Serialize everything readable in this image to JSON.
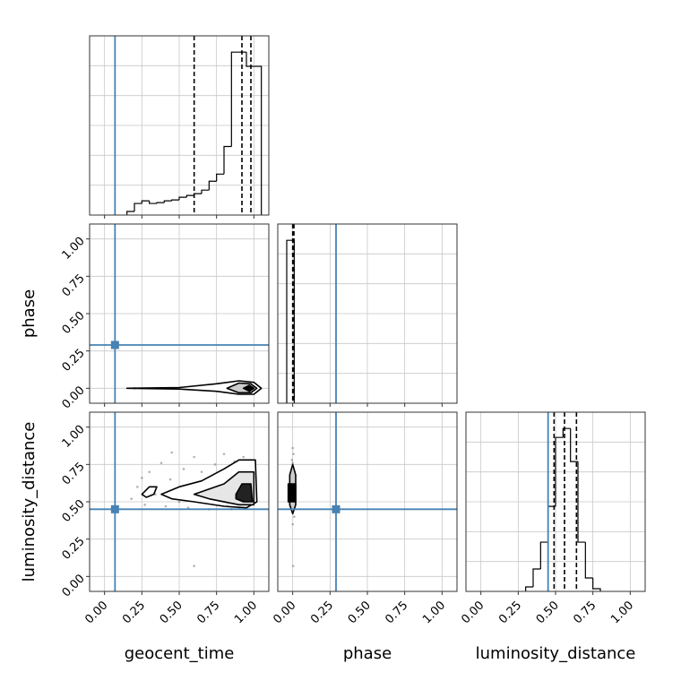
{
  "chart_data": {
    "type": "corner",
    "parameters": [
      "geocent_time",
      "phase",
      "luminosity_distance"
    ],
    "truths": [
      0.07,
      0.29,
      0.45
    ],
    "truth_color": "#4682b4",
    "line_color": "#000000",
    "point_color": "#808080",
    "grid": true,
    "xlim": [
      -0.1,
      1.1
    ],
    "ylim": [
      -0.1,
      1.1
    ],
    "xticks": [
      {
        "value": 0,
        "label": "0.00"
      },
      {
        "value": 0.25,
        "label": "0.25"
      },
      {
        "value": 0.5,
        "label": "0.50"
      },
      {
        "value": 0.75,
        "label": "0.75"
      },
      {
        "value": 1,
        "label": "1.00"
      }
    ],
    "yticks": [
      {
        "value": 0,
        "label": "0.00"
      },
      {
        "value": 0.25,
        "label": "0.25"
      },
      {
        "value": 0.5,
        "label": "0.50"
      },
      {
        "value": 0.75,
        "label": "0.75"
      },
      {
        "value": 1,
        "label": "1.00"
      }
    ],
    "histograms": [
      {
        "bins": [
          0.15,
          0.2,
          0.25,
          0.3,
          0.35,
          0.4,
          0.45,
          0.5,
          0.55,
          0.6,
          0.65,
          0.7,
          0.75,
          0.8,
          0.85,
          0.9,
          0.95,
          1.0,
          1.05
        ],
        "counts": [
          4,
          13,
          16,
          13,
          14,
          16,
          17,
          20,
          22,
          24,
          28,
          38,
          46,
          77,
          183,
          183,
          167,
          167
        ],
        "quantiles": [
          0.6,
          0.92,
          0.98
        ]
      },
      {
        "bins": [
          -0.04,
          0.0,
          0.01
        ],
        "counts": [
          1000,
          1000
        ],
        "quantiles": [
          0.0,
          0.003,
          0.008
        ]
      },
      {
        "bins": [
          0.3,
          0.35,
          0.4,
          0.45,
          0.5,
          0.55,
          0.6,
          0.65,
          0.7,
          0.75,
          0.8
        ],
        "counts": [
          5,
          25,
          55,
          95,
          172,
          182,
          145,
          55,
          15,
          3
        ],
        "quantiles": [
          0.49,
          0.56,
          0.64
        ]
      }
    ],
    "pairs": [
      {
        "points": {
          "x": [
            0.2,
            0.35,
            0.5,
            0.65,
            0.8,
            0.95
          ],
          "y": [
            0,
            0.002,
            -0.002,
            0.01,
            -0.01,
            0.02
          ]
        },
        "contours": [
          {
            "fill": "#ffffff",
            "x": [
              0.15,
              0.5,
              0.75,
              0.9,
              1.0,
              1.05,
              1.0,
              0.9,
              0.75,
              0.5
            ],
            "y": [
              0.0,
              0.005,
              0.03,
              0.05,
              0.04,
              0.0,
              -0.04,
              -0.04,
              -0.02,
              -0.005
            ]
          },
          {
            "fill": "#cccccc",
            "x": [
              0.82,
              0.9,
              0.98,
              1.02,
              0.98,
              0.9
            ],
            "y": [
              0.0,
              0.035,
              0.03,
              0.0,
              -0.03,
              -0.03
            ]
          },
          {
            "fill": "#000000",
            "x": [
              0.93,
              0.97,
              1.0,
              0.97
            ],
            "y": [
              0.0,
              0.02,
              0.0,
              -0.02
            ]
          }
        ]
      },
      {
        "points": {
          "x": [
            0.18,
            0.22,
            0.27,
            0.3,
            0.34,
            0.38,
            0.41,
            0.44,
            0.47,
            0.5,
            0.53,
            0.56,
            0.6,
            0.63,
            0.67,
            0.7,
            0.74,
            0.77,
            0.8,
            0.84,
            0.87,
            0.9,
            0.93,
            0.96,
            0.99,
            0.25,
            0.45,
            0.65,
            0.85,
            0.6
          ],
          "y": [
            0.52,
            0.6,
            0.48,
            0.7,
            0.55,
            0.76,
            0.47,
            0.65,
            0.58,
            0.5,
            0.72,
            0.46,
            0.8,
            0.55,
            0.6,
            0.45,
            0.75,
            0.5,
            0.82,
            0.48,
            0.77,
            0.46,
            0.8,
            0.47,
            0.76,
            0.66,
            0.83,
            0.7,
            0.45,
            0.07
          ]
        },
        "contours": [
          {
            "fill": "#ffffff",
            "x": [
              0.25,
              0.3,
              0.35,
              0.33,
              0.28
            ],
            "y": [
              0.55,
              0.6,
              0.6,
              0.55,
              0.53
            ]
          },
          {
            "fill": "#ffffff",
            "x": [
              0.38,
              0.5,
              0.65,
              0.8,
              0.9,
              1.01,
              1.02,
              0.95,
              0.8,
              0.6,
              0.45
            ],
            "y": [
              0.55,
              0.6,
              0.64,
              0.72,
              0.78,
              0.78,
              0.5,
              0.46,
              0.47,
              0.5,
              0.52
            ]
          },
          {
            "fill": "#e6e6e6",
            "x": [
              0.6,
              0.8,
              0.9,
              1.0,
              1.0,
              0.9,
              0.7
            ],
            "y": [
              0.55,
              0.62,
              0.7,
              0.7,
              0.48,
              0.48,
              0.52
            ]
          },
          {
            "fill": "#222222",
            "x": [
              0.88,
              0.92,
              0.98,
              0.99,
              0.93,
              0.88
            ],
            "y": [
              0.55,
              0.62,
              0.62,
              0.5,
              0.5,
              0.52
            ]
          }
        ]
      },
      {
        "points": {
          "x": [
            0,
            0.005,
            -0.005,
            0.01,
            0,
            -0.01,
            0.003,
            0
          ],
          "y": [
            0.35,
            0.82,
            0.78,
            0.4,
            0.86,
            0.45,
            0.07,
            0.76
          ]
        },
        "contours": [
          {
            "fill": "#cccccc",
            "x": [
              -0.02,
              -0.02,
              0.0,
              0.02,
              0.02,
              0.0
            ],
            "y": [
              0.48,
              0.68,
              0.75,
              0.68,
              0.48,
              0.42
            ]
          },
          {
            "fill": "#000000",
            "x": [
              -0.03,
              -0.03,
              0.02,
              0.02
            ],
            "y": [
              0.5,
              0.62,
              0.62,
              0.5
            ]
          }
        ]
      }
    ]
  }
}
